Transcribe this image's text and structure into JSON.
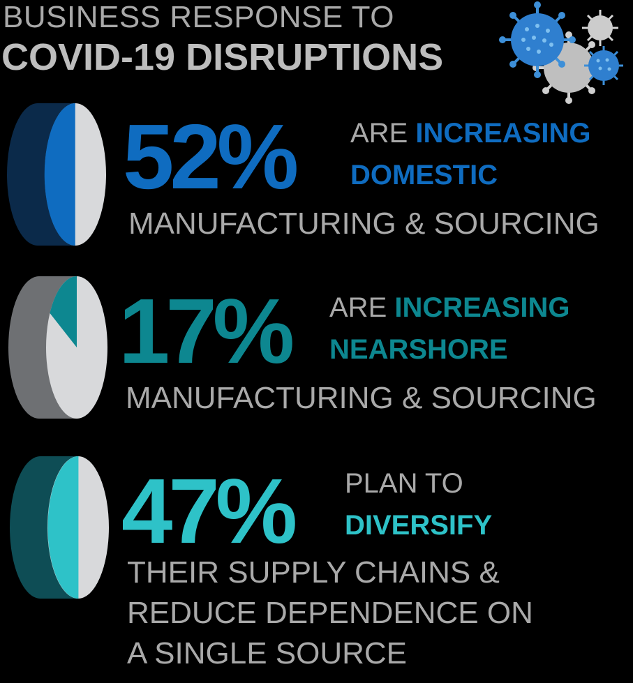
{
  "title": {
    "line1": "BUSINESS RESPONSE TO",
    "line2": "COVID-19 DISRUPTIONS"
  },
  "icon": "virus-icon",
  "colors": {
    "blue": "#0f6cc0",
    "teal": "#0d8790",
    "cyan": "#2ec2c8",
    "gray_text": "#a9a9a9",
    "pie_light": "#d8d9db"
  },
  "chart_data": {
    "type": "pie",
    "unit": "%",
    "items": [
      {
        "value": 52,
        "label": "52%",
        "line1_plain": "ARE ",
        "line1_bold": "INCREASING",
        "line2_bold": "DOMESTIC",
        "desc": [
          "MANUFACTURING & SOURCING"
        ]
      },
      {
        "value": 17,
        "label": "17%",
        "line1_plain": "ARE ",
        "line1_bold": "INCREASING",
        "line2_bold": "NEARSHORE",
        "desc": [
          "MANUFACTURING & SOURCING"
        ]
      },
      {
        "value": 47,
        "label": "47%",
        "line1_plain": "PLAN TO",
        "line1_bold": "",
        "line2_bold": "DIVERSIFY",
        "desc": [
          "THEIR SUPPLY CHAINS &",
          "REDUCE DEPENDENCE ON",
          "A SINGLE SOURCE"
        ]
      }
    ]
  }
}
